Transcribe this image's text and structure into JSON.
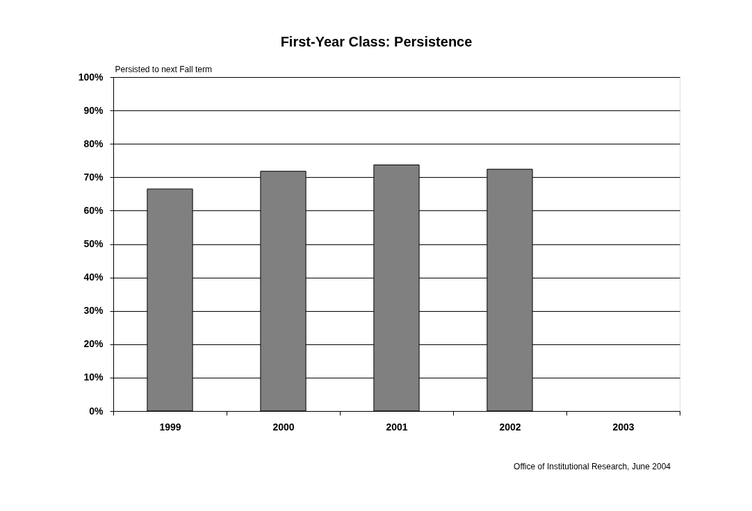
{
  "chart_data": {
    "type": "bar",
    "title": "First-Year Class: Persistence",
    "ylabel": "Persisted to next Fall term",
    "categories": [
      "1999",
      "2000",
      "2001",
      "2002",
      "2003"
    ],
    "values": [
      66.5,
      71.8,
      73.7,
      72.4,
      null
    ],
    "color": "#808080",
    "ylim": [
      0,
      100
    ],
    "yticks": [
      {
        "value": 0,
        "label": "0%"
      },
      {
        "value": 10,
        "label": "10%"
      },
      {
        "value": 20,
        "label": "20%"
      },
      {
        "value": 30,
        "label": "30%"
      },
      {
        "value": 40,
        "label": "40%"
      },
      {
        "value": 50,
        "label": "50%"
      },
      {
        "value": 60,
        "label": "60%"
      },
      {
        "value": 70,
        "label": "70%"
      },
      {
        "value": 80,
        "label": "80%"
      },
      {
        "value": 90,
        "label": "90%"
      },
      {
        "value": 100,
        "label": "100%"
      }
    ],
    "grid": "y",
    "annotations": [
      "Office of Institutional Research, June 2004"
    ]
  }
}
